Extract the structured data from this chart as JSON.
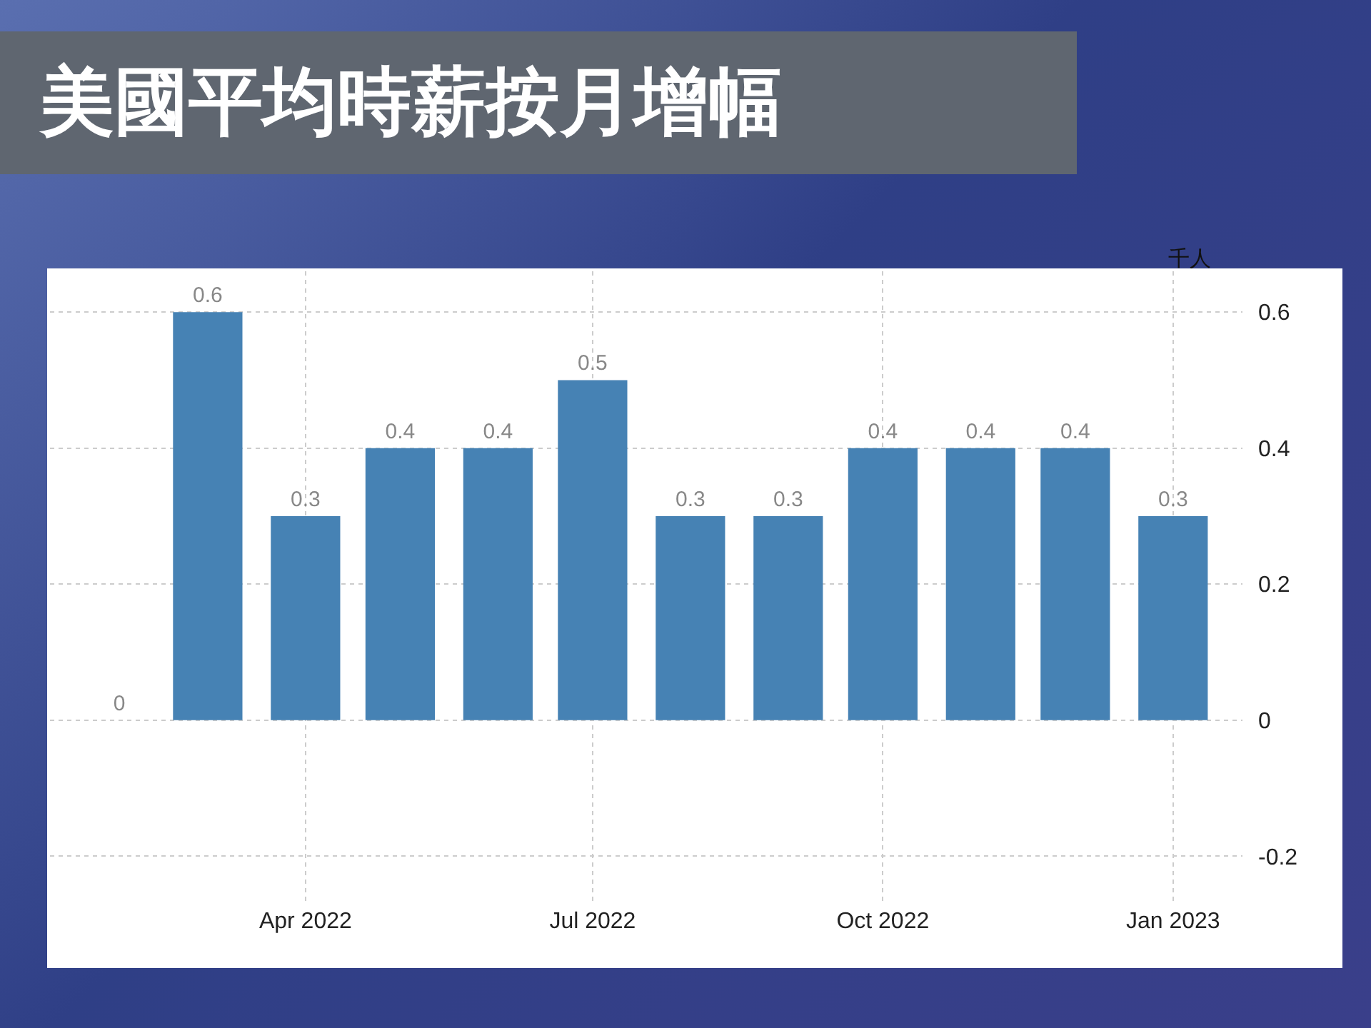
{
  "chart_data": {
    "type": "bar",
    "title": "美國平均時薪按月增幅",
    "ylabel": "千人",
    "x": [
      "2022-02",
      "2022-03",
      "2022-04",
      "2022-05",
      "2022-06",
      "2022-07",
      "2022-08",
      "2022-09",
      "2022-10",
      "2022-11",
      "2022-12",
      "2023-01"
    ],
    "values": [
      0,
      0.6,
      0.3,
      0.4,
      0.4,
      0.5,
      0.3,
      0.3,
      0.4,
      0.4,
      0.4,
      0.3
    ],
    "color": "#4682b4",
    "xlim": [
      "2022-01-10",
      "2023-01-23"
    ],
    "xticks": [
      {
        "value": "2022-04",
        "label": "Apr 2022"
      },
      {
        "value": "2022-07",
        "label": "Jul 2022"
      },
      {
        "value": "2022-10",
        "label": "Oct 2022"
      },
      {
        "value": "2023-01",
        "label": "Jan 2023"
      }
    ],
    "ylim": [
      -0.27,
      0.66
    ],
    "yticks": [
      -0.2,
      0,
      0.2,
      0.4,
      0.6
    ],
    "grid": true,
    "data_labels": true
  }
}
